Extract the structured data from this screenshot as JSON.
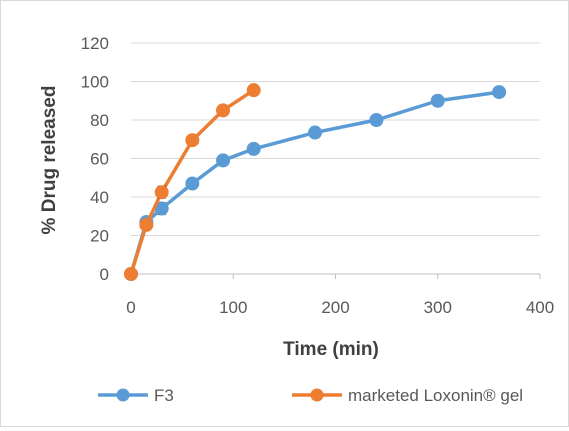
{
  "chart_data": {
    "type": "line",
    "title": "",
    "xlabel": "Time (min)",
    "ylabel": "% Drug released",
    "xlim": [
      0,
      400
    ],
    "ylim": [
      0,
      120
    ],
    "xticks": [
      0,
      100,
      200,
      300,
      400
    ],
    "yticks": [
      0,
      20,
      40,
      60,
      80,
      100,
      120
    ],
    "grid": "horizontal",
    "legend_position": "bottom",
    "series": [
      {
        "name": "F3",
        "color": "#5b9bd5",
        "x": [
          0,
          15,
          30,
          60,
          90,
          120,
          180,
          240,
          300,
          360
        ],
        "y": [
          0,
          27,
          34,
          47,
          59,
          65,
          73.5,
          80,
          90,
          94.5
        ],
        "error": [
          0,
          1.5,
          3,
          1.5,
          1,
          1,
          1,
          1,
          1,
          1
        ]
      },
      {
        "name": "marketed Loxonin® gel",
        "color": "#ed7d31",
        "x": [
          0,
          15,
          30,
          60,
          90,
          120
        ],
        "y": [
          0,
          25.5,
          42.5,
          69.5,
          85,
          95.5
        ],
        "error": [
          0,
          1,
          3,
          1,
          1,
          1
        ]
      }
    ]
  }
}
